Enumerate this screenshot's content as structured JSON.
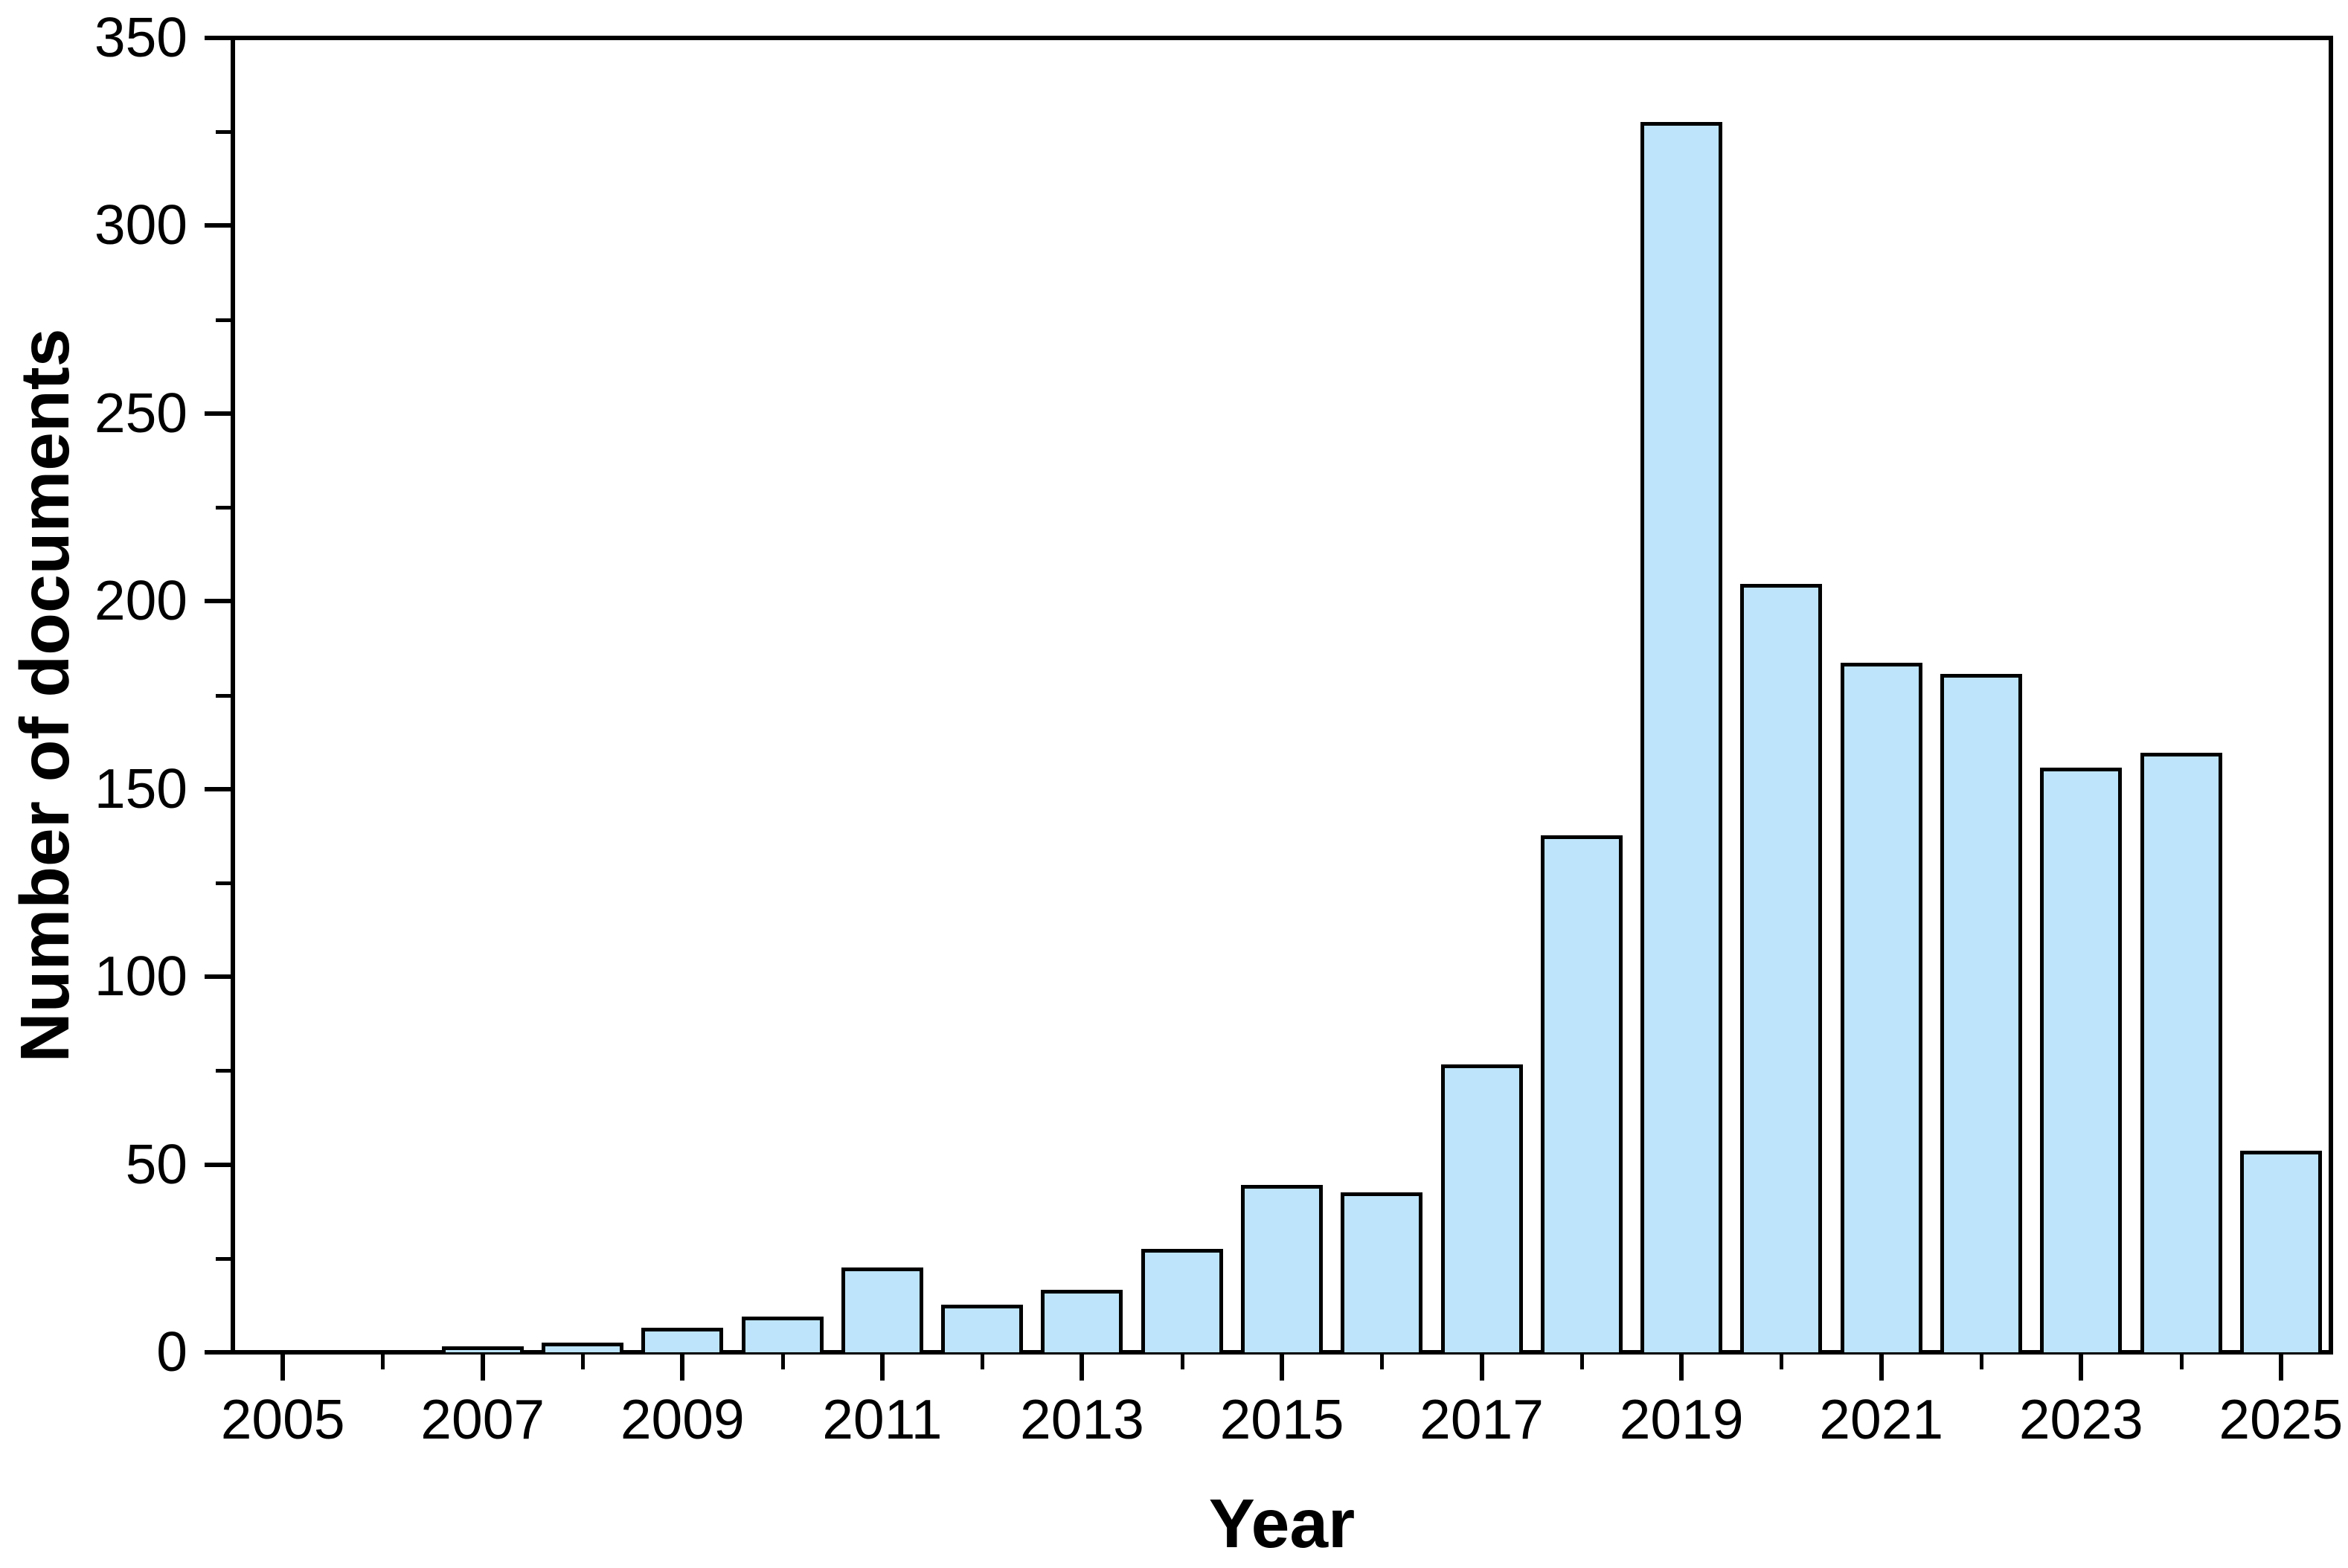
{
  "chart_data": {
    "type": "bar",
    "title": "",
    "xlabel": "Year",
    "ylabel": "Number of documents",
    "categories": [
      2005,
      2006,
      2007,
      2008,
      2009,
      2010,
      2011,
      2012,
      2013,
      2014,
      2015,
      2016,
      2017,
      2018,
      2019,
      2020,
      2021,
      2022,
      2023,
      2024,
      2025
    ],
    "values": [
      0,
      0,
      1,
      2,
      6,
      9,
      22,
      12,
      16,
      27,
      44,
      42,
      76,
      137,
      327,
      204,
      183,
      180,
      155,
      159,
      53
    ],
    "x_tick_labels": [
      "2005",
      "2007",
      "2009",
      "2011",
      "2013",
      "2015",
      "2017",
      "2019",
      "2021",
      "2023",
      "2025"
    ],
    "ylim": [
      0,
      350
    ],
    "y_major_step": 50,
    "y_minor_step": 25,
    "y_tick_labels": [
      "0",
      "50",
      "100",
      "150",
      "200",
      "250",
      "300",
      "350"
    ],
    "grid": false,
    "legend": false,
    "colors": {
      "bar_fill": "#BDE4FA",
      "bar_border": "#000000",
      "axis": "#000000",
      "text": "#000000",
      "background": "#FFFFFF"
    }
  }
}
